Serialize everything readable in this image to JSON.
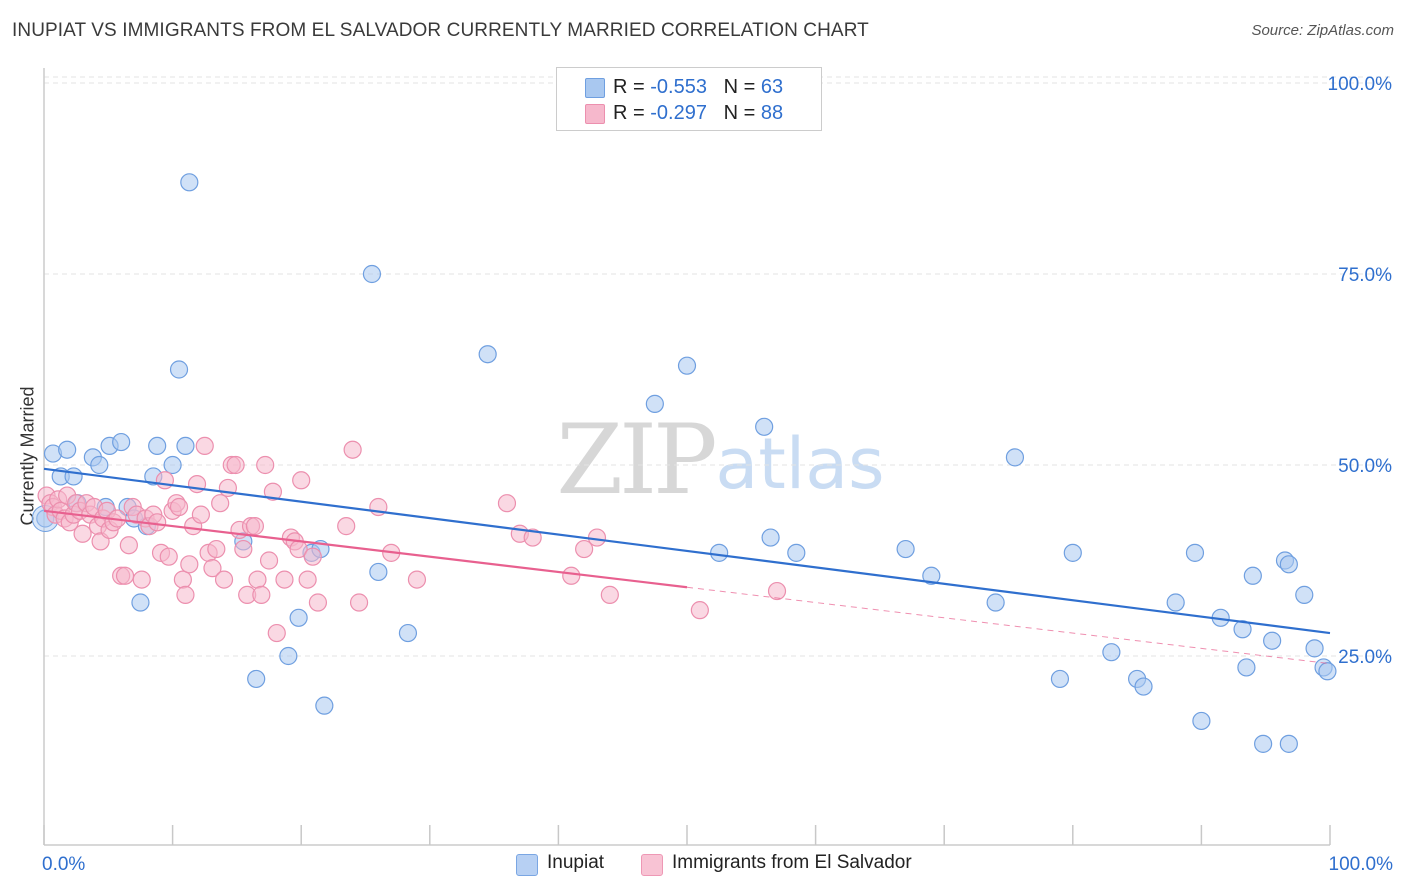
{
  "title": "INUPIAT VS IMMIGRANTS FROM EL SALVADOR CURRENTLY MARRIED CORRELATION CHART",
  "source": "Source: ZipAtlas.com",
  "watermark": {
    "zip": "ZIP",
    "atlas": "atlas"
  },
  "colors": {
    "blue_fill": "#a9c8f0",
    "blue_stroke": "#6f9fe0",
    "blue_line": "#2f6fce",
    "pink_fill": "#f6b8cc",
    "pink_stroke": "#ec8fae",
    "pink_line": "#e8608f",
    "axis_text": "#2f6fce",
    "grid": "#e3e3e3"
  },
  "legend": {
    "rows": [
      {
        "r_label": "R =",
        "r_value": "-0.553",
        "n_label": "N =",
        "n_value": "63",
        "color": "#a9c8f0"
      },
      {
        "r_label": "R =",
        "r_value": "-0.297",
        "n_label": "N =",
        "n_value": "88",
        "color": "#f6b8cc"
      }
    ]
  },
  "bottom_legend": [
    {
      "label": "Inupiat",
      "color": "#b7d0f3"
    },
    {
      "label": "Immigrants from El Salvador",
      "color": "#f8c3d4"
    }
  ],
  "chart_data": {
    "type": "scatter",
    "title": "INUPIAT VS IMMIGRANTS FROM EL SALVADOR CURRENTLY MARRIED CORRELATION CHART",
    "ylabel": "Currently Married",
    "xlabel": "",
    "xlim": [
      0,
      100
    ],
    "ylim": [
      0,
      105
    ],
    "x_tick_labels": [
      {
        "x": 0,
        "label": "0.0%"
      },
      {
        "x": 100,
        "label": "100.0%"
      }
    ],
    "y_ticks": [
      25,
      50,
      75,
      100
    ],
    "y_tick_labels": [
      "25.0%",
      "50.0%",
      "75.0%",
      "100.0%"
    ],
    "grid": true,
    "legend_position": "top-center",
    "series": [
      {
        "name": "Inupiat",
        "points": [
          [
            0.1,
            43.0
          ],
          [
            0.7,
            51.5
          ],
          [
            1.3,
            48.5
          ],
          [
            1.8,
            52.0
          ],
          [
            2.3,
            48.5
          ],
          [
            2.6,
            45.0
          ],
          [
            3.8,
            51.0
          ],
          [
            4.3,
            50.0
          ],
          [
            4.8,
            44.5
          ],
          [
            5.1,
            52.5
          ],
          [
            6.0,
            53.0
          ],
          [
            6.5,
            44.5
          ],
          [
            7.0,
            43.0
          ],
          [
            7.5,
            32.0
          ],
          [
            8.0,
            42.0
          ],
          [
            8.5,
            48.5
          ],
          [
            8.8,
            52.5
          ],
          [
            10.0,
            50.0
          ],
          [
            10.5,
            62.5
          ],
          [
            11.0,
            52.5
          ],
          [
            11.3,
            87.0
          ],
          [
            15.5,
            40.0
          ],
          [
            16.5,
            22.0
          ],
          [
            19.0,
            25.0
          ],
          [
            19.8,
            30.0
          ],
          [
            20.8,
            38.5
          ],
          [
            21.5,
            39.0
          ],
          [
            21.8,
            18.5
          ],
          [
            25.5,
            75.0
          ],
          [
            26.0,
            36.0
          ],
          [
            28.3,
            28.0
          ],
          [
            34.5,
            64.5
          ],
          [
            47.5,
            58.0
          ],
          [
            50.0,
            63.0
          ],
          [
            52.5,
            38.5
          ],
          [
            56.0,
            55.0
          ],
          [
            56.5,
            40.5
          ],
          [
            58.5,
            38.5
          ],
          [
            67.0,
            39.0
          ],
          [
            69.0,
            35.5
          ],
          [
            74.0,
            32.0
          ],
          [
            75.5,
            51.0
          ],
          [
            79.0,
            22.0
          ],
          [
            80.0,
            38.5
          ],
          [
            83.0,
            25.5
          ],
          [
            85.0,
            22.0
          ],
          [
            85.5,
            21.0
          ],
          [
            88.0,
            32.0
          ],
          [
            89.5,
            38.5
          ],
          [
            90.0,
            16.5
          ],
          [
            91.5,
            30.0
          ],
          [
            93.2,
            28.5
          ],
          [
            93.5,
            23.5
          ],
          [
            94.0,
            35.5
          ],
          [
            94.8,
            13.5
          ],
          [
            95.5,
            27.0
          ],
          [
            96.5,
            37.5
          ],
          [
            96.8,
            37.0
          ],
          [
            96.8,
            13.5
          ],
          [
            98.0,
            33.0
          ],
          [
            98.8,
            26.0
          ],
          [
            99.5,
            23.5
          ],
          [
            99.8,
            23.0
          ]
        ],
        "trend": {
          "x0": 0,
          "y0": 49.5,
          "x1": 100,
          "y1": 28.0
        }
      },
      {
        "name": "Immigrants from El Salvador",
        "points": [
          [
            0.2,
            46.0
          ],
          [
            0.5,
            45.0
          ],
          [
            0.7,
            44.5
          ],
          [
            0.9,
            43.5
          ],
          [
            1.1,
            45.5
          ],
          [
            1.3,
            44.0
          ],
          [
            1.6,
            43.0
          ],
          [
            1.8,
            46.0
          ],
          [
            2.0,
            42.5
          ],
          [
            2.3,
            43.5
          ],
          [
            2.5,
            45.0
          ],
          [
            2.8,
            44.0
          ],
          [
            3.0,
            41.0
          ],
          [
            3.3,
            45.0
          ],
          [
            3.6,
            43.5
          ],
          [
            3.9,
            44.5
          ],
          [
            4.2,
            42.0
          ],
          [
            4.4,
            40.0
          ],
          [
            4.6,
            43.0
          ],
          [
            4.9,
            44.0
          ],
          [
            5.1,
            41.5
          ],
          [
            5.4,
            42.5
          ],
          [
            5.7,
            43.0
          ],
          [
            6.0,
            35.5
          ],
          [
            6.3,
            35.5
          ],
          [
            6.6,
            39.5
          ],
          [
            6.9,
            44.5
          ],
          [
            7.2,
            43.5
          ],
          [
            7.6,
            35.0
          ],
          [
            7.9,
            43.0
          ],
          [
            8.2,
            42.0
          ],
          [
            8.5,
            43.5
          ],
          [
            8.8,
            42.5
          ],
          [
            9.1,
            38.5
          ],
          [
            9.4,
            48.0
          ],
          [
            9.7,
            38.0
          ],
          [
            10.0,
            44.0
          ],
          [
            10.3,
            45.0
          ],
          [
            10.5,
            44.5
          ],
          [
            10.8,
            35.0
          ],
          [
            11.0,
            33.0
          ],
          [
            11.3,
            37.0
          ],
          [
            11.6,
            42.0
          ],
          [
            11.9,
            47.5
          ],
          [
            12.2,
            43.5
          ],
          [
            12.5,
            52.5
          ],
          [
            12.8,
            38.5
          ],
          [
            13.1,
            36.5
          ],
          [
            13.4,
            39.0
          ],
          [
            13.7,
            45.0
          ],
          [
            14.0,
            35.0
          ],
          [
            14.3,
            47.0
          ],
          [
            14.6,
            50.0
          ],
          [
            14.9,
            50.0
          ],
          [
            15.2,
            41.5
          ],
          [
            15.5,
            39.0
          ],
          [
            15.8,
            33.0
          ],
          [
            16.1,
            42.0
          ],
          [
            16.4,
            42.0
          ],
          [
            16.6,
            35.0
          ],
          [
            16.9,
            33.0
          ],
          [
            17.2,
            50.0
          ],
          [
            17.5,
            37.5
          ],
          [
            17.8,
            46.5
          ],
          [
            18.1,
            28.0
          ],
          [
            18.7,
            35.0
          ],
          [
            19.2,
            40.5
          ],
          [
            19.5,
            40.0
          ],
          [
            19.8,
            39.0
          ],
          [
            20.0,
            48.0
          ],
          [
            20.5,
            35.0
          ],
          [
            20.9,
            38.0
          ],
          [
            21.3,
            32.0
          ],
          [
            23.5,
            42.0
          ],
          [
            24.0,
            52.0
          ],
          [
            24.5,
            32.0
          ],
          [
            26.0,
            44.5
          ],
          [
            27.0,
            38.5
          ],
          [
            29.0,
            35.0
          ],
          [
            36.0,
            45.0
          ],
          [
            37.0,
            41.0
          ],
          [
            38.0,
            40.5
          ],
          [
            41.0,
            35.5
          ],
          [
            42.0,
            39.0
          ],
          [
            43.0,
            40.5
          ],
          [
            44.0,
            33.0
          ],
          [
            51.0,
            31.0
          ],
          [
            57.0,
            33.5
          ]
        ],
        "trend": {
          "x0": 0,
          "y0": 44.0,
          "x1": 50.0,
          "y1": 34.0,
          "dashed_to_x": 100,
          "dashed_to_y": 24.0
        }
      }
    ]
  }
}
